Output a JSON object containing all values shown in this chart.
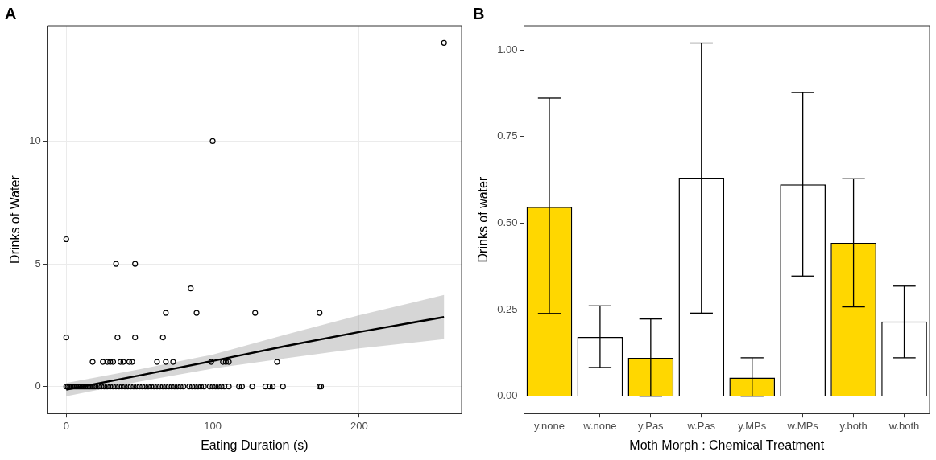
{
  "chart_data": [
    {
      "type": "scatter",
      "title": "A",
      "xlabel": "Eating Duration (s)",
      "ylabel": "Drinks of Water",
      "xlim": [
        -13,
        270
      ],
      "ylim": [
        -1.1,
        14.7
      ],
      "xticks": [
        0,
        100,
        200
      ],
      "yticks": [
        0,
        5,
        10
      ],
      "grid": true,
      "series": [
        {
          "type": "scatter",
          "color": "#000000",
          "marker": "circle",
          "x": [
            0,
            1,
            2,
            3,
            4,
            5,
            6,
            7,
            8,
            9,
            10,
            11,
            12,
            13,
            14,
            15,
            16,
            17,
            18,
            19,
            20,
            22,
            24,
            26,
            28,
            30,
            32,
            34,
            36,
            38,
            40,
            42,
            44,
            46,
            48,
            50,
            52,
            54,
            56,
            58,
            60,
            62,
            64,
            66,
            68,
            70,
            72,
            74,
            76,
            78,
            80,
            84,
            86,
            88,
            90,
            92,
            94,
            98,
            100,
            102,
            104,
            106,
            108,
            111,
            118,
            120,
            127,
            136,
            139,
            141,
            148,
            173,
            174,
            18,
            25,
            28,
            30,
            32,
            37,
            39,
            43,
            45,
            62,
            68,
            73,
            99,
            107,
            109,
            111,
            144,
            0,
            35,
            47,
            66,
            68,
            89,
            129,
            173,
            85,
            34,
            47,
            0,
            100,
            258
          ],
          "values": [
            0,
            0,
            0,
            0,
            0,
            0,
            0,
            0,
            0,
            0,
            0,
            0,
            0,
            0,
            0,
            0,
            0,
            0,
            0,
            0,
            0,
            0,
            0,
            0,
            0,
            0,
            0,
            0,
            0,
            0,
            0,
            0,
            0,
            0,
            0,
            0,
            0,
            0,
            0,
            0,
            0,
            0,
            0,
            0,
            0,
            0,
            0,
            0,
            0,
            0,
            0,
            0,
            0,
            0,
            0,
            0,
            0,
            0,
            0,
            0,
            0,
            0,
            0,
            0,
            0,
            0,
            0,
            0,
            0,
            0,
            0,
            0,
            0,
            1,
            1,
            1,
            1,
            1,
            1,
            1,
            1,
            1,
            1,
            1,
            1,
            1,
            1,
            1,
            1,
            1,
            2,
            2,
            2,
            2,
            3,
            3,
            3,
            3,
            4,
            5,
            5,
            6,
            10,
            14
          ]
        },
        {
          "type": "line",
          "color": "#000000",
          "marker": "none",
          "x": [
            0,
            50,
            100,
            150,
            200,
            258
          ],
          "values": [
            -0.13,
            0.45,
            1.04,
            1.65,
            2.22,
            2.83
          ],
          "lower": [
            -0.4,
            0.2,
            0.73,
            1.15,
            1.55,
            1.93
          ],
          "upper": [
            0.14,
            0.7,
            1.3,
            2.12,
            2.9,
            3.73
          ]
        }
      ]
    },
    {
      "type": "bar",
      "title": "B",
      "xlabel": "Moth Morph : Chemical Treatment",
      "ylabel": "Drinks of water",
      "categories": [
        "y.none",
        "w.none",
        "y.Pas",
        "w.Pas",
        "y.MPs",
        "w.MPs",
        "y.both",
        "w.both"
      ],
      "values": [
        0.547,
        0.171,
        0.111,
        0.631,
        0.054,
        0.612,
        0.443,
        0.216
      ],
      "colors": [
        "#ffd700",
        "#ffffff",
        "#ffd700",
        "#ffffff",
        "#ffd700",
        "#ffffff",
        "#ffd700",
        "#ffffff"
      ],
      "errors": [
        [
          0.239,
          0.861
        ],
        [
          0.083,
          0.261
        ],
        [
          0,
          0.223
        ],
        [
          0.24,
          1.02
        ],
        [
          0,
          0.111
        ],
        [
          0.347,
          0.877
        ],
        [
          0.258,
          0.628
        ],
        [
          0.111,
          0.318
        ]
      ],
      "ylim": [
        -0.05,
        1.07
      ],
      "yticks": [
        {
          "value": 0,
          "label": "0.00"
        },
        {
          "value": 0.25,
          "label": "0.25"
        },
        {
          "value": 0.5,
          "label": "0.50"
        },
        {
          "value": 0.75,
          "label": "0.75"
        },
        {
          "value": 1,
          "label": "1.00"
        }
      ]
    }
  ]
}
